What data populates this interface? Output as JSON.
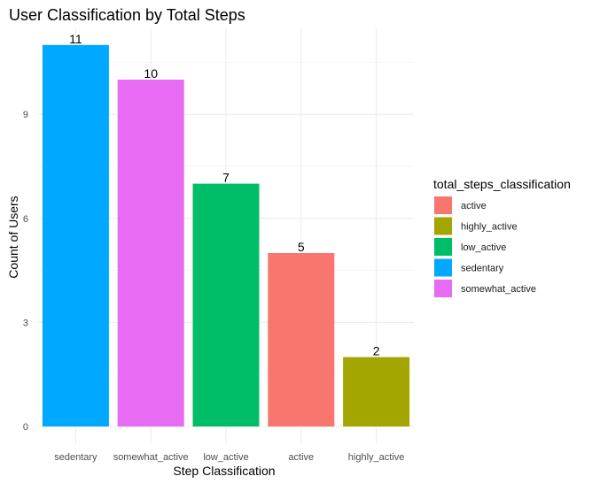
{
  "chart_data": {
    "type": "bar",
    "title": "User Classification by Total Steps",
    "xlabel": "Step Classification",
    "ylabel": "Count of Users",
    "categories": [
      "sedentary",
      "somewhat_active",
      "low_active",
      "active",
      "highly_active"
    ],
    "values": [
      11,
      10,
      7,
      5,
      2
    ],
    "data_labels": [
      "11",
      "10",
      "7",
      "5",
      "2"
    ],
    "bar_colors": [
      "#00A9FF",
      "#E76BF3",
      "#00BE67",
      "#F8766D",
      "#A3A500"
    ],
    "ylim": [
      0,
      11.55
    ],
    "y_ticks": [
      0,
      3,
      6,
      9
    ],
    "y_tick_labels": [
      "0",
      "3",
      "6",
      "9"
    ],
    "grid": true,
    "legend": {
      "title": "total_steps_classification",
      "position": "right",
      "entries": [
        {
          "label": "active",
          "color": "#F8766D"
        },
        {
          "label": "highly_active",
          "color": "#A3A500"
        },
        {
          "label": "low_active",
          "color": "#00BE67"
        },
        {
          "label": "sedentary",
          "color": "#00A9FF"
        },
        {
          "label": "somewhat_active",
          "color": "#E76BF3"
        }
      ]
    }
  }
}
